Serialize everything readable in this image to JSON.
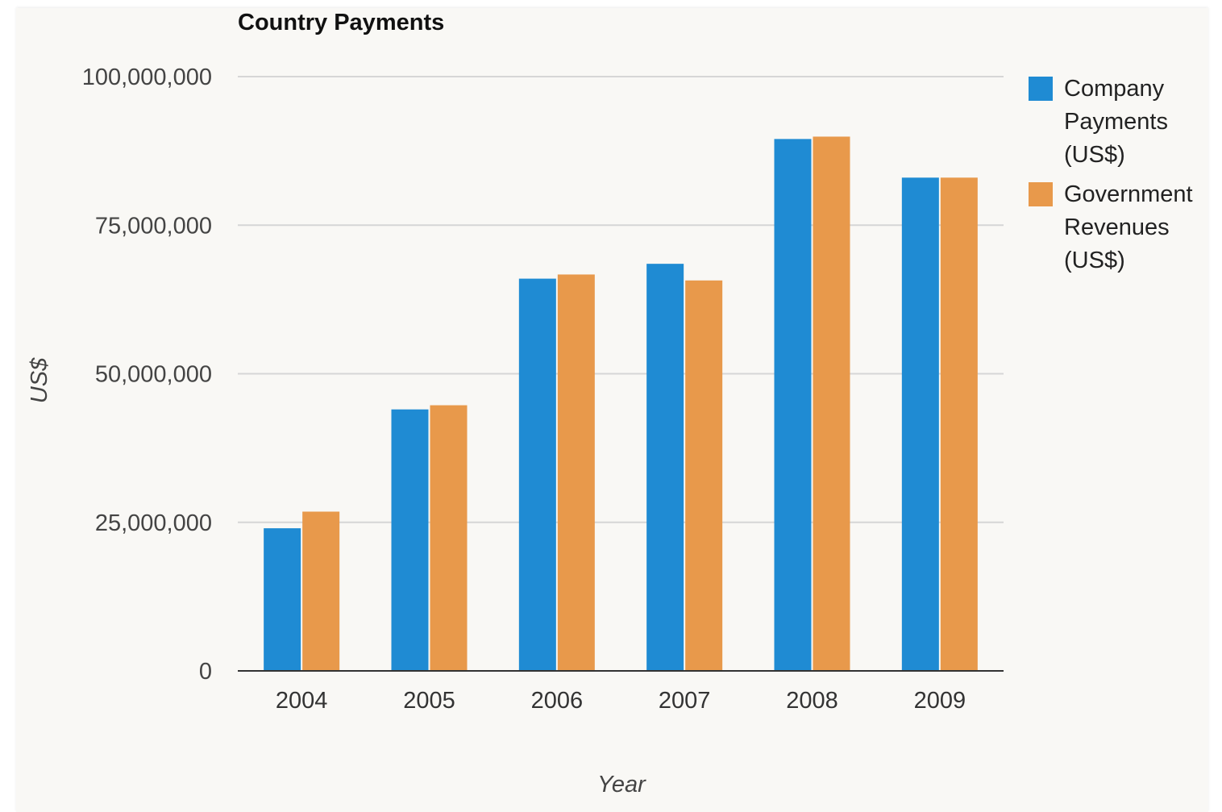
{
  "chart_data": {
    "type": "bar",
    "title": "Country Payments",
    "xlabel": "Year",
    "ylabel": "US$",
    "categories": [
      "2004",
      "2005",
      "2006",
      "2007",
      "2008",
      "2009"
    ],
    "ylim": [
      0,
      100000000
    ],
    "yticks": [
      0,
      25000000,
      50000000,
      75000000,
      100000000
    ],
    "ytick_labels": [
      "0",
      "25,000,000",
      "50,000,000",
      "75,000,000",
      "100,000,000"
    ],
    "grid": true,
    "legend_position": "right",
    "series": [
      {
        "name": "Company Payments (US$)",
        "color": "#1f8bd3",
        "values": [
          24000000,
          44000000,
          66000000,
          68500000,
          89500000,
          83000000
        ]
      },
      {
        "name": "Government Revenues (US$)",
        "color": "#e8994b",
        "values": [
          26800000,
          44700000,
          66700000,
          65700000,
          89900000,
          83000000
        ]
      }
    ]
  }
}
